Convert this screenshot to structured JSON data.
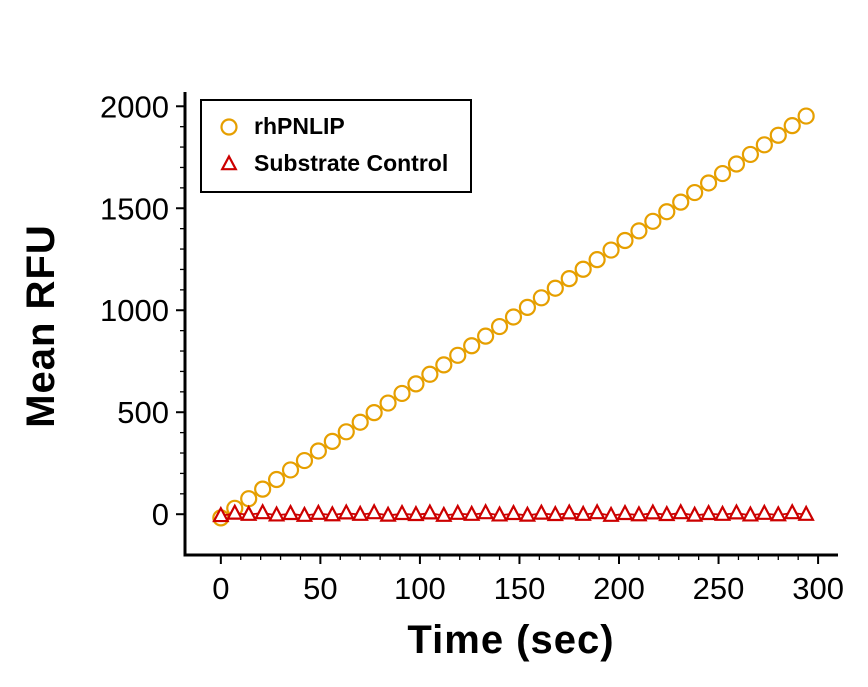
{
  "chart_data": {
    "type": "scatter",
    "title": "",
    "xlabel": "Time (sec)",
    "ylabel": "Mean RFU",
    "xlim": [
      -18,
      310
    ],
    "ylim": [
      -200,
      2070
    ],
    "x_ticks": [
      0,
      50,
      100,
      150,
      200,
      250,
      300
    ],
    "y_ticks": [
      0,
      500,
      1000,
      1500,
      2000
    ],
    "x_minor_step": 10,
    "y_minor_step": 100,
    "grid": false,
    "legend_position": "top-left",
    "axis_color": "#000000",
    "background_color": "#ffffff",
    "x": [
      0,
      7,
      14,
      21,
      28,
      35,
      42,
      49,
      56,
      63,
      70,
      77,
      84,
      91,
      98,
      105,
      112,
      119,
      126,
      133,
      140,
      147,
      154,
      161,
      168,
      175,
      182,
      189,
      196,
      203,
      210,
      217,
      224,
      231,
      238,
      245,
      252,
      259,
      266,
      273,
      280,
      287,
      294
    ],
    "series": [
      {
        "name": "rhPNLIP",
        "marker": "circle",
        "color": "#E69F00",
        "values": [
          -18,
          29,
          76,
          123,
          170,
          217,
          263,
          310,
          357,
          404,
          451,
          498,
          545,
          592,
          639,
          686,
          732,
          779,
          826,
          873,
          920,
          967,
          1014,
          1061,
          1108,
          1155,
          1201,
          1248,
          1295,
          1342,
          1389,
          1436,
          1483,
          1530,
          1577,
          1624,
          1670,
          1717,
          1764,
          1811,
          1858,
          1905,
          1952
        ]
      },
      {
        "name": "Substrate Control",
        "marker": "triangle",
        "color": "#CC0000",
        "values": [
          -8,
          4,
          -2,
          6,
          -5,
          2,
          -7,
          3,
          -4,
          5,
          -2,
          6,
          -6,
          2,
          -3,
          5,
          -7,
          3,
          -2,
          6,
          -5,
          2,
          -6,
          4,
          -3,
          5,
          -2,
          6,
          -7,
          2,
          -4,
          5,
          -3,
          6,
          -6,
          2,
          -2,
          5,
          -5,
          3,
          -4,
          6,
          -2
        ]
      }
    ]
  }
}
